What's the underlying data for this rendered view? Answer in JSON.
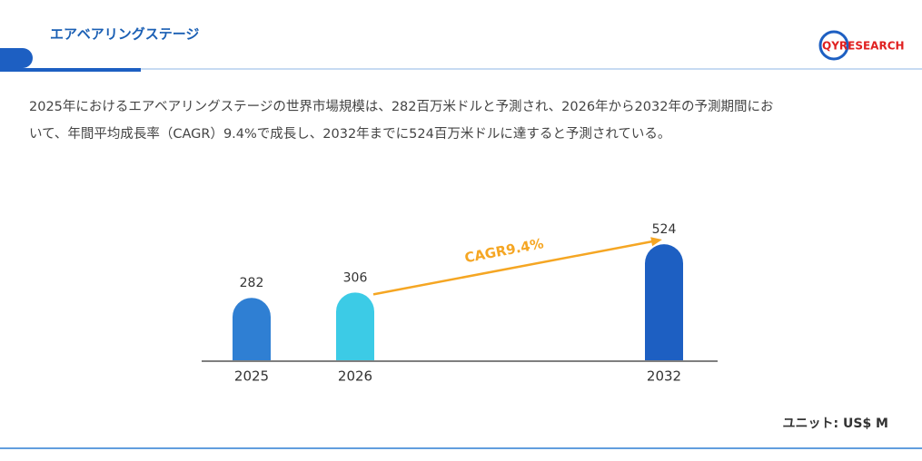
{
  "header": {
    "title": "エアベアリングステージ",
    "logo": "QYRESEARCH"
  },
  "description": [
    "2025年におけるエアベアリングステージの世界市場規模は、282百万米ドルと予測され、2026年から2032年の予測期間にお",
    "いて、年間平均成長率（CAGR）9.4%で成長し、2032年までに524百万米ドルに達すると予測されている。"
  ],
  "chart_data": {
    "type": "bar",
    "categories": [
      "2025",
      "2026",
      "2032"
    ],
    "values": [
      282,
      306,
      524
    ],
    "colors": [
      "#2f7fd3",
      "#3ccbe6",
      "#1d5fc2"
    ],
    "annotation": "CAGR9.4%",
    "annotation_color": "#f5a623",
    "unit": "ユニット: US$ M"
  }
}
